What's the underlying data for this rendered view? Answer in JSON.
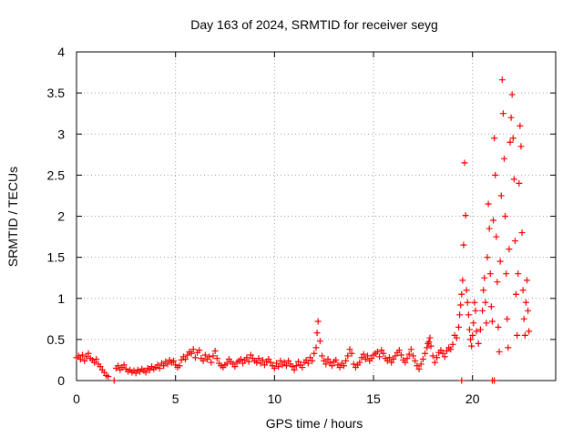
{
  "chart_data": {
    "type": "scatter",
    "title": "Day 163 of 2024, SRMTID for receiver seyg",
    "xlabel": "GPS time / hours",
    "ylabel": "SRMTID / TECUs",
    "xlim": [
      0,
      24.2
    ],
    "ylim": [
      0,
      4
    ],
    "x_ticks": [
      0,
      5,
      10,
      15,
      20
    ],
    "x_tick_labels": [
      "0",
      "5",
      "10",
      "15",
      "20"
    ],
    "y_ticks": [
      0,
      0.5,
      1,
      1.5,
      2,
      2.5,
      3,
      3.5,
      4
    ],
    "y_tick_labels": [
      "0",
      "0.5",
      "1",
      "1.5",
      "2",
      "2.5",
      "3",
      "3.5",
      "4"
    ],
    "grid": true,
    "marker": "plus",
    "series": [
      {
        "name": "SRMTID",
        "color": "#ff0000",
        "points": [
          [
            0.0,
            0.28
          ],
          [
            0.1,
            0.3
          ],
          [
            0.2,
            0.26
          ],
          [
            0.3,
            0.31
          ],
          [
            0.4,
            0.24
          ],
          [
            0.5,
            0.29
          ],
          [
            0.6,
            0.33
          ],
          [
            0.7,
            0.27
          ],
          [
            0.8,
            0.25
          ],
          [
            0.9,
            0.22
          ],
          [
            1.0,
            0.26
          ],
          [
            1.1,
            0.2
          ],
          [
            1.2,
            0.17
          ],
          [
            1.3,
            0.13
          ],
          [
            1.4,
            0.1
          ],
          [
            1.5,
            0.06
          ],
          [
            1.6,
            0.05
          ],
          [
            1.9,
            0.0
          ],
          [
            2.0,
            0.15
          ],
          [
            2.1,
            0.18
          ],
          [
            2.2,
            0.13
          ],
          [
            2.3,
            0.16
          ],
          [
            2.4,
            0.19
          ],
          [
            2.5,
            0.14
          ],
          [
            2.6,
            0.11
          ],
          [
            2.7,
            0.13
          ],
          [
            2.8,
            0.1
          ],
          [
            2.9,
            0.12
          ],
          [
            3.0,
            0.09
          ],
          [
            3.1,
            0.13
          ],
          [
            3.2,
            0.11
          ],
          [
            3.3,
            0.14
          ],
          [
            3.4,
            0.12
          ],
          [
            3.5,
            0.1
          ],
          [
            3.6,
            0.15
          ],
          [
            3.7,
            0.13
          ],
          [
            3.8,
            0.17
          ],
          [
            3.9,
            0.14
          ],
          [
            4.0,
            0.16
          ],
          [
            4.1,
            0.19
          ],
          [
            4.2,
            0.15
          ],
          [
            4.3,
            0.21
          ],
          [
            4.4,
            0.18
          ],
          [
            4.5,
            0.23
          ],
          [
            4.6,
            0.2
          ],
          [
            4.7,
            0.25
          ],
          [
            4.8,
            0.22
          ],
          [
            4.9,
            0.24
          ],
          [
            5.0,
            0.19
          ],
          [
            5.1,
            0.16
          ],
          [
            5.2,
            0.18
          ],
          [
            5.3,
            0.25
          ],
          [
            5.4,
            0.29
          ],
          [
            5.5,
            0.26
          ],
          [
            5.6,
            0.31
          ],
          [
            5.7,
            0.35
          ],
          [
            5.8,
            0.33
          ],
          [
            5.9,
            0.38
          ],
          [
            6.0,
            0.28
          ],
          [
            6.1,
            0.34
          ],
          [
            6.2,
            0.37
          ],
          [
            6.3,
            0.27
          ],
          [
            6.4,
            0.24
          ],
          [
            6.5,
            0.31
          ],
          [
            6.6,
            0.26
          ],
          [
            6.7,
            0.29
          ],
          [
            6.8,
            0.22
          ],
          [
            6.9,
            0.3
          ],
          [
            7.0,
            0.36
          ],
          [
            7.1,
            0.27
          ],
          [
            7.2,
            0.21
          ],
          [
            7.3,
            0.18
          ],
          [
            7.4,
            0.16
          ],
          [
            7.5,
            0.19
          ],
          [
            7.6,
            0.21
          ],
          [
            7.7,
            0.26
          ],
          [
            7.8,
            0.23
          ],
          [
            7.9,
            0.2
          ],
          [
            8.0,
            0.17
          ],
          [
            8.1,
            0.22
          ],
          [
            8.2,
            0.24
          ],
          [
            8.3,
            0.26
          ],
          [
            8.4,
            0.21
          ],
          [
            8.5,
            0.25
          ],
          [
            8.6,
            0.28
          ],
          [
            8.7,
            0.23
          ],
          [
            8.8,
            0.31
          ],
          [
            8.9,
            0.27
          ],
          [
            9.0,
            0.24
          ],
          [
            9.1,
            0.22
          ],
          [
            9.2,
            0.27
          ],
          [
            9.3,
            0.21
          ],
          [
            9.4,
            0.25
          ],
          [
            9.5,
            0.19
          ],
          [
            9.6,
            0.23
          ],
          [
            9.7,
            0.26
          ],
          [
            9.8,
            0.22
          ],
          [
            9.9,
            0.18
          ],
          [
            10.0,
            0.15
          ],
          [
            10.1,
            0.21
          ],
          [
            10.2,
            0.17
          ],
          [
            10.3,
            0.24
          ],
          [
            10.4,
            0.19
          ],
          [
            10.5,
            0.22
          ],
          [
            10.6,
            0.18
          ],
          [
            10.7,
            0.24
          ],
          [
            10.8,
            0.2
          ],
          [
            10.9,
            0.17
          ],
          [
            11.0,
            0.13
          ],
          [
            11.1,
            0.18
          ],
          [
            11.2,
            0.23
          ],
          [
            11.3,
            0.19
          ],
          [
            11.4,
            0.16
          ],
          [
            11.5,
            0.22
          ],
          [
            11.6,
            0.25
          ],
          [
            11.7,
            0.21
          ],
          [
            11.8,
            0.28
          ],
          [
            11.9,
            0.24
          ],
          [
            12.0,
            0.33
          ],
          [
            12.1,
            0.4
          ],
          [
            12.15,
            0.58
          ],
          [
            12.2,
            0.72
          ],
          [
            12.3,
            0.48
          ],
          [
            12.4,
            0.3
          ],
          [
            12.5,
            0.24
          ],
          [
            12.6,
            0.2
          ],
          [
            12.7,
            0.26
          ],
          [
            12.8,
            0.22
          ],
          [
            12.9,
            0.18
          ],
          [
            13.0,
            0.23
          ],
          [
            13.1,
            0.25
          ],
          [
            13.2,
            0.19
          ],
          [
            13.3,
            0.16
          ],
          [
            13.4,
            0.21
          ],
          [
            13.5,
            0.18
          ],
          [
            13.6,
            0.24
          ],
          [
            13.7,
            0.3
          ],
          [
            13.8,
            0.38
          ],
          [
            13.9,
            0.33
          ],
          [
            14.0,
            0.2
          ],
          [
            14.1,
            0.16
          ],
          [
            14.2,
            0.19
          ],
          [
            14.3,
            0.22
          ],
          [
            14.4,
            0.28
          ],
          [
            14.5,
            0.32
          ],
          [
            14.6,
            0.26
          ],
          [
            14.7,
            0.3
          ],
          [
            14.8,
            0.24
          ],
          [
            14.9,
            0.27
          ],
          [
            15.0,
            0.31
          ],
          [
            15.1,
            0.33
          ],
          [
            15.2,
            0.35
          ],
          [
            15.3,
            0.29
          ],
          [
            15.4,
            0.37
          ],
          [
            15.5,
            0.33
          ],
          [
            15.6,
            0.27
          ],
          [
            15.7,
            0.24
          ],
          [
            15.8,
            0.28
          ],
          [
            15.9,
            0.22
          ],
          [
            16.0,
            0.26
          ],
          [
            16.1,
            0.3
          ],
          [
            16.2,
            0.34
          ],
          [
            16.3,
            0.37
          ],
          [
            16.4,
            0.31
          ],
          [
            16.5,
            0.25
          ],
          [
            16.6,
            0.22
          ],
          [
            16.7,
            0.27
          ],
          [
            16.8,
            0.32
          ],
          [
            16.9,
            0.38
          ],
          [
            17.0,
            0.3
          ],
          [
            17.1,
            0.24
          ],
          [
            17.2,
            0.18
          ],
          [
            17.3,
            0.14
          ],
          [
            17.4,
            0.2
          ],
          [
            17.5,
            0.26
          ],
          [
            17.6,
            0.33
          ],
          [
            17.7,
            0.4
          ],
          [
            17.75,
            0.45
          ],
          [
            17.8,
            0.47
          ],
          [
            17.85,
            0.52
          ],
          [
            17.9,
            0.42
          ],
          [
            18.0,
            0.3
          ],
          [
            18.1,
            0.22
          ],
          [
            18.2,
            0.28
          ],
          [
            18.3,
            0.34
          ],
          [
            18.4,
            0.37
          ],
          [
            18.5,
            0.33
          ],
          [
            18.6,
            0.29
          ],
          [
            18.7,
            0.36
          ],
          [
            18.8,
            0.4
          ],
          [
            18.9,
            0.38
          ],
          [
            19.0,
            0.44
          ],
          [
            19.1,
            0.55
          ],
          [
            19.2,
            0.52
          ],
          [
            19.3,
            0.65
          ],
          [
            19.35,
            0.8
          ],
          [
            19.4,
            0.92
          ],
          [
            19.45,
            1.05
          ],
          [
            19.5,
            1.22
          ],
          [
            19.55,
            1.65
          ],
          [
            19.6,
            2.65
          ],
          [
            19.65,
            2.01
          ],
          [
            19.7,
            1.1
          ],
          [
            19.75,
            0.95
          ],
          [
            19.8,
            0.8
          ],
          [
            19.85,
            0.62
          ],
          [
            19.9,
            0.5
          ],
          [
            19.95,
            0.42
          ],
          [
            20.0,
            0.55
          ],
          [
            20.05,
            0.7
          ],
          [
            20.1,
            0.95
          ],
          [
            20.15,
            0.85
          ],
          [
            20.2,
            0.6
          ],
          [
            20.3,
            0.45
          ],
          [
            20.4,
            0.62
          ],
          [
            20.5,
            0.85
          ],
          [
            20.55,
            1.1
          ],
          [
            20.6,
            1.25
          ],
          [
            20.65,
            0.95
          ],
          [
            20.7,
            0.7
          ],
          [
            20.75,
            1.5
          ],
          [
            20.8,
            2.15
          ],
          [
            20.85,
            1.85
          ],
          [
            20.9,
            1.3
          ],
          [
            20.95,
            0.9
          ],
          [
            21.0,
            0.72
          ],
          [
            21.05,
            1.95
          ],
          [
            21.1,
            2.95
          ],
          [
            21.15,
            2.5
          ],
          [
            21.2,
            1.75
          ],
          [
            21.25,
            1.2
          ],
          [
            21.3,
            0.65
          ],
          [
            21.35,
            0.35
          ],
          [
            21.4,
            1.45
          ],
          [
            21.45,
            2.25
          ],
          [
            21.5,
            3.66
          ],
          [
            21.55,
            3.25
          ],
          [
            21.6,
            2.7
          ],
          [
            21.65,
            2.0
          ],
          [
            21.7,
            1.3
          ],
          [
            21.75,
            0.75
          ],
          [
            21.8,
            0.4
          ],
          [
            21.85,
            1.6
          ],
          [
            21.9,
            2.9
          ],
          [
            21.95,
            3.2
          ],
          [
            22.0,
            3.48
          ],
          [
            22.05,
            2.95
          ],
          [
            22.1,
            2.45
          ],
          [
            22.15,
            1.7
          ],
          [
            22.2,
            1.05
          ],
          [
            22.25,
            0.55
          ],
          [
            22.3,
            1.3
          ],
          [
            22.35,
            2.4
          ],
          [
            22.4,
            3.1
          ],
          [
            22.45,
            2.85
          ],
          [
            22.5,
            1.8
          ],
          [
            22.55,
            1.1
          ],
          [
            22.6,
            0.75
          ],
          [
            22.65,
            0.55
          ],
          [
            22.7,
            0.95
          ],
          [
            22.75,
            1.22
          ],
          [
            22.8,
            0.85
          ],
          [
            22.85,
            0.6
          ],
          [
            19.45,
            0.0
          ],
          [
            21.0,
            0.0
          ],
          [
            21.1,
            0.0
          ]
        ]
      }
    ]
  }
}
